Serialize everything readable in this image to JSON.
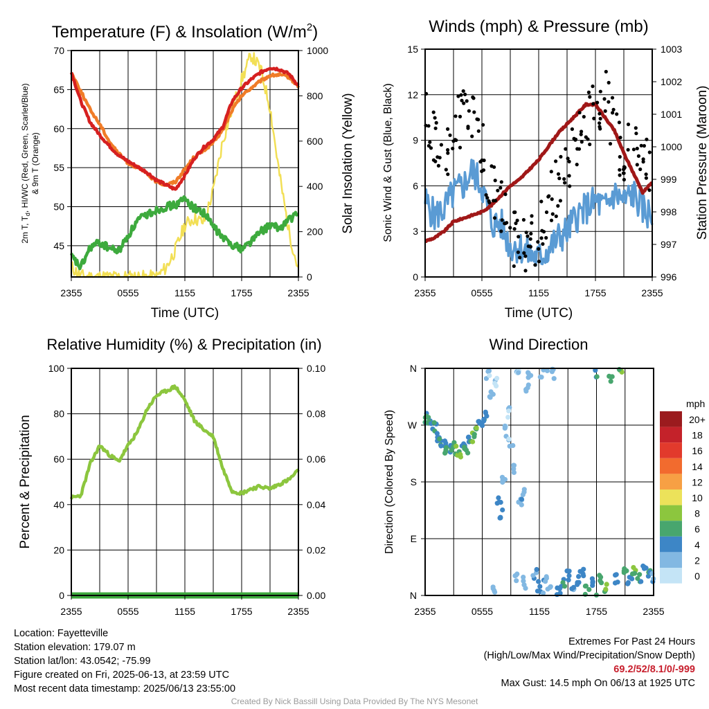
{
  "info": {
    "location": "Location: Fayetteville",
    "elevation": "Station elevation: 179.07 m",
    "latlon": "Station lat/lon: 43.0542; -75.99",
    "created": "Figure created on Fri, 2025-06-13, at 23:59 UTC",
    "recent": "Most recent data timestamp: 2025/06/13 23:55:00"
  },
  "extremes": {
    "title": "Extremes For Past 24 Hours",
    "subtitle": "(High/Low/Max Wind/Precipitation/Snow Depth)",
    "values": "69.2/52/8.1/0/-999",
    "max_gust": "Max Gust: 14.5 mph On 06/13 at 1925 UTC"
  },
  "credit": "Created By Nick Bassill Using Data Provided By The NYS Mesonet",
  "x_ticks": [
    "2355",
    "0555",
    "1155",
    "1755",
    "2355"
  ],
  "chart_data": [
    {
      "id": "temperature",
      "type": "line",
      "title": "Temperature (F) & Insolation (W/m",
      "title_sup": "2",
      "title_end": ")",
      "xlabel": "Time (UTC)",
      "ylabel": "2m T, T",
      "ylabel_sub": "d",
      "ylabel_rest": ", HI/WC (Red, Green, Scarlet/Blue)",
      "ylabel2": "& 9m T (Orange)",
      "y2label": "Solar Insolation (Yellow)",
      "ylim": [
        41,
        70
      ],
      "y_ticks": [
        45,
        50,
        55,
        60,
        65,
        70
      ],
      "y2lim": [
        0,
        1000
      ],
      "y2_ticks": [
        0,
        200,
        400,
        600,
        800,
        1000
      ],
      "x_hours": [
        0,
        1,
        2,
        3,
        4,
        5,
        6,
        7,
        8,
        9,
        10,
        11,
        12,
        13,
        14,
        15,
        16,
        17,
        18,
        19,
        20,
        21,
        22,
        23,
        24
      ],
      "series": [
        {
          "key": "temp_2m",
          "color": "#d62020",
          "y2": false,
          "values": [
            67.2,
            63.5,
            60.8,
            59.2,
            57.8,
            56.6,
            55.8,
            55.1,
            54.4,
            53.4,
            52.8,
            52.2,
            54.0,
            56.2,
            57.6,
            58.6,
            60.2,
            63.5,
            65.2,
            66.3,
            67.2,
            67.8,
            67.6,
            67.0,
            65.5
          ]
        },
        {
          "key": "temp_9m",
          "color": "#f07c28",
          "y2": false,
          "values": [
            67.2,
            64.8,
            62.4,
            60.6,
            58.4,
            56.8,
            55.6,
            55.0,
            54.2,
            53.2,
            52.8,
            53.2,
            54.8,
            56.4,
            57.2,
            58.2,
            59.8,
            62.4,
            64.2,
            65.2,
            66.1,
            66.8,
            66.9,
            66.6,
            65.4
          ]
        },
        {
          "key": "dewpoint",
          "color": "#3daa3d",
          "y2": false,
          "values": [
            43.6,
            42.2,
            44.8,
            45.4,
            44.7,
            44.3,
            46.3,
            48.2,
            49.0,
            49.6,
            50.0,
            50.2,
            51.0,
            49.8,
            49.2,
            47.5,
            46.0,
            45.2,
            44.6,
            45.6,
            46.8,
            47.6,
            47.2,
            48.4,
            49.0
          ]
        },
        {
          "key": "insolation",
          "color": "#f2df55",
          "y2": true,
          "values": [
            45,
            5,
            0,
            0,
            0,
            0,
            0,
            0,
            0,
            0,
            40,
            120,
            230,
            260,
            240,
            380,
            600,
            740,
            870,
            980,
            920,
            750,
            450,
            200,
            30
          ]
        }
      ]
    },
    {
      "id": "winds",
      "type": "line",
      "title": "Winds (mph) & Pressure (mb)",
      "xlabel": "Time (UTC)",
      "ylabel": "Sonic Wind & Gust (Blue, Black)",
      "y2label": "Station Pressure (Maroon)",
      "ylim": [
        0,
        15
      ],
      "y_ticks": [
        0,
        3,
        6,
        9,
        12,
        15
      ],
      "y2lim": [
        996,
        1003
      ],
      "y2_ticks": [
        996,
        997,
        998,
        999,
        1000,
        1001,
        1002,
        1003
      ],
      "x_hours": [
        0,
        1,
        2,
        3,
        4,
        5,
        6,
        7,
        8,
        9,
        10,
        11,
        12,
        13,
        14,
        15,
        16,
        17,
        18,
        19,
        20,
        21,
        22,
        23,
        24
      ],
      "series": [
        {
          "key": "pressure",
          "color": "#a01818",
          "y2": true,
          "values": [
            997.1,
            997.2,
            997.4,
            997.7,
            997.8,
            997.9,
            998.0,
            998.2,
            998.5,
            998.8,
            999.0,
            999.3,
            999.6,
            1000.0,
            1000.4,
            1000.7,
            1001.0,
            1001.3,
            1001.3,
            1000.9,
            1000.5,
            999.8,
            999.2,
            998.6,
            998.9
          ]
        },
        {
          "key": "wind",
          "color": "#5a9bd4",
          "y2": false,
          "values": [
            5.0,
            4.0,
            4.5,
            5.5,
            6.0,
            7.0,
            6.0,
            3.5,
            3.5,
            2.0,
            2.0,
            1.5,
            1.2,
            1.8,
            2.5,
            3.0,
            4.0,
            4.5,
            5.0,
            4.5,
            5.5,
            5.0,
            5.5,
            4.5,
            4.0
          ]
        },
        {
          "key": "gust",
          "color": "#000000",
          "y2": false,
          "marker": "dot",
          "values": [
            10.5,
            9.0,
            8.0,
            9.5,
            10.5,
            10.0,
            8.5,
            6.0,
            5.0,
            3.0,
            2.0,
            2.0,
            2.5,
            4.5,
            6.0,
            7.0,
            9.0,
            10.0,
            11.5,
            12.0,
            9.5,
            8.0,
            9.0,
            8.0,
            7.5
          ]
        }
      ]
    },
    {
      "id": "humidity",
      "type": "line",
      "title": "Relative Humidity (%) & Precipitation (in)",
      "ylabel": "Percent & Precipitation",
      "ylim": [
        0,
        100
      ],
      "y_ticks": [
        0,
        20,
        40,
        60,
        80,
        100
      ],
      "y2lim": [
        0,
        0.1
      ],
      "y2_ticks": [
        "0.00",
        "0.02",
        "0.04",
        "0.06",
        "0.08",
        "0.10"
      ],
      "x_hours": [
        0,
        1,
        2,
        3,
        4,
        5,
        6,
        7,
        8,
        9,
        10,
        11,
        12,
        13,
        14,
        15,
        16,
        17,
        18,
        19,
        20,
        21,
        22,
        23,
        24
      ],
      "series": [
        {
          "key": "rh",
          "color": "#8cc63e",
          "y2": false,
          "values": [
            43,
            44,
            58,
            66,
            62,
            59,
            66,
            72,
            82,
            88,
            90,
            92,
            86,
            77,
            73,
            70,
            56,
            46,
            45,
            47,
            48,
            47,
            49,
            51,
            55
          ]
        },
        {
          "key": "precip",
          "color": "#3da93d",
          "y2": true,
          "values": [
            0,
            0,
            0,
            0,
            0,
            0,
            0,
            0,
            0,
            0,
            0,
            0,
            0,
            0,
            0,
            0,
            0,
            0,
            0,
            0,
            0,
            0,
            0,
            0,
            0
          ]
        }
      ]
    },
    {
      "id": "direction",
      "type": "scatter",
      "title": "Wind Direction",
      "ylabel": "Direction (Colored By Speed)",
      "y_ticks": [
        "N",
        "E",
        "S",
        "W",
        "N"
      ],
      "ylim": [
        0,
        360
      ],
      "colorbar_unit": "mph",
      "colorbar_labels": [
        "20+",
        "18",
        "16",
        "14",
        "12",
        "10",
        "8",
        "6",
        "4",
        "2",
        "0"
      ],
      "colorbar_colors": [
        "#9b1b1e",
        "#c4222a",
        "#e23a2c",
        "#f26b2e",
        "#f7a044",
        "#ece25a",
        "#8cc63e",
        "#48a66e",
        "#3d86c6",
        "#82b8e2",
        "#c4e4f6"
      ],
      "points": [
        {
          "h": 0.0,
          "d": 280,
          "s": 5
        },
        {
          "h": 0.3,
          "d": 278,
          "s": 6
        },
        {
          "h": 0.6,
          "d": 272,
          "s": 5
        },
        {
          "h": 1.0,
          "d": 265,
          "s": 5
        },
        {
          "h": 1.3,
          "d": 250,
          "s": 4
        },
        {
          "h": 1.6,
          "d": 242,
          "s": 5
        },
        {
          "h": 2.0,
          "d": 236,
          "s": 4
        },
        {
          "h": 2.3,
          "d": 228,
          "s": 6
        },
        {
          "h": 2.6,
          "d": 232,
          "s": 5
        },
        {
          "h": 3.0,
          "d": 238,
          "s": 6
        },
        {
          "h": 3.3,
          "d": 230,
          "s": 7
        },
        {
          "h": 3.6,
          "d": 224,
          "s": 7
        },
        {
          "h": 4.0,
          "d": 235,
          "s": 4
        },
        {
          "h": 4.3,
          "d": 232,
          "s": 5
        },
        {
          "h": 4.6,
          "d": 246,
          "s": 4
        },
        {
          "h": 5.0,
          "d": 250,
          "s": 7
        },
        {
          "h": 5.3,
          "d": 258,
          "s": 7
        },
        {
          "h": 5.6,
          "d": 268,
          "s": 4
        },
        {
          "h": 6.0,
          "d": 275,
          "s": 5
        },
        {
          "h": 6.3,
          "d": 282,
          "s": 4
        },
        {
          "h": 6.6,
          "d": 350,
          "s": 1
        },
        {
          "h": 7.0,
          "d": 320,
          "s": 2
        },
        {
          "h": 7.2,
          "d": 12,
          "s": 2
        },
        {
          "h": 7.5,
          "d": 340,
          "s": 1
        },
        {
          "h": 7.8,
          "d": 150,
          "s": 4
        },
        {
          "h": 8.0,
          "d": 128,
          "s": 4
        },
        {
          "h": 8.2,
          "d": 180,
          "s": 2
        },
        {
          "h": 8.5,
          "d": 260,
          "s": 1
        },
        {
          "h": 8.7,
          "d": 290,
          "s": 1
        },
        {
          "h": 9.0,
          "d": 240,
          "s": 1
        },
        {
          "h": 9.2,
          "d": 200,
          "s": 1
        },
        {
          "h": 9.5,
          "d": 30,
          "s": 2
        },
        {
          "h": 9.7,
          "d": 350,
          "s": 1
        },
        {
          "h": 10.0,
          "d": 150,
          "s": 2
        },
        {
          "h": 10.2,
          "d": 160,
          "s": 3
        },
        {
          "h": 10.5,
          "d": 20,
          "s": 2
        },
        {
          "h": 10.8,
          "d": 325,
          "s": 2
        },
        {
          "h": 11.0,
          "d": 345,
          "s": 2
        },
        {
          "h": 11.5,
          "d": 35,
          "s": 3
        },
        {
          "h": 12.0,
          "d": 15,
          "s": 4
        },
        {
          "h": 12.3,
          "d": 355,
          "s": 2
        },
        {
          "h": 12.6,
          "d": 25,
          "s": 3
        },
        {
          "h": 13.0,
          "d": 5,
          "s": 3
        },
        {
          "h": 13.5,
          "d": 350,
          "s": 2
        },
        {
          "h": 14.0,
          "d": 10,
          "s": 4
        },
        {
          "h": 14.5,
          "d": 20,
          "s": 5
        },
        {
          "h": 15.0,
          "d": 30,
          "s": 4
        },
        {
          "h": 15.5,
          "d": 15,
          "s": 3
        },
        {
          "h": 16.0,
          "d": 25,
          "s": 5
        },
        {
          "h": 16.5,
          "d": 35,
          "s": 4
        },
        {
          "h": 17.0,
          "d": 8,
          "s": 6
        },
        {
          "h": 17.5,
          "d": 18,
          "s": 4
        },
        {
          "h": 18.0,
          "d": 355,
          "s": 5
        },
        {
          "h": 18.5,
          "d": 28,
          "s": 6
        },
        {
          "h": 19.0,
          "d": 12,
          "s": 7
        },
        {
          "h": 19.5,
          "d": 348,
          "s": 6
        },
        {
          "h": 20.0,
          "d": 25,
          "s": 4
        },
        {
          "h": 20.5,
          "d": 355,
          "s": 7
        },
        {
          "h": 21.0,
          "d": 35,
          "s": 6
        },
        {
          "h": 21.5,
          "d": 20,
          "s": 4
        },
        {
          "h": 22.0,
          "d": 40,
          "s": 7
        },
        {
          "h": 22.5,
          "d": 30,
          "s": 5
        },
        {
          "h": 23.0,
          "d": 45,
          "s": 4
        },
        {
          "h": 23.5,
          "d": 38,
          "s": 5
        },
        {
          "h": 23.8,
          "d": 30,
          "s": 3
        }
      ]
    }
  ]
}
